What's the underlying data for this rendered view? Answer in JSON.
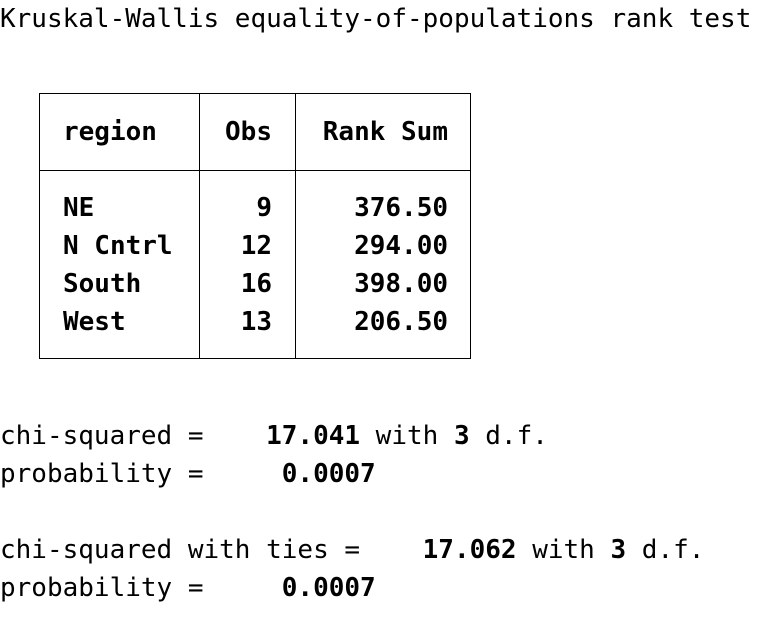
{
  "title": "Kruskal-Wallis equality-of-populations rank test",
  "table": {
    "headers": {
      "region": "region",
      "obs": "Obs",
      "rank_sum": "Rank Sum"
    },
    "rows": [
      {
        "region": "NE",
        "obs": "9",
        "rank_sum": "376.50"
      },
      {
        "region": "N Cntrl",
        "obs": "12",
        "rank_sum": "294.00"
      },
      {
        "region": "South",
        "obs": "16",
        "rank_sum": "398.00"
      },
      {
        "region": "West",
        "obs": "13",
        "rank_sum": "206.50"
      }
    ]
  },
  "stats": {
    "chi_label": "chi-squared =    ",
    "chi_value": "17.041",
    "chi_with": " with ",
    "chi_df": "3",
    "chi_df_suffix": " d.f.",
    "prob_label": "probability =     ",
    "prob_value": "0.0007",
    "ties_label": "chi-squared with ties =    ",
    "ties_value": "17.062",
    "ties_with": " with ",
    "ties_df": "3",
    "ties_df_suffix": " d.f.",
    "ties_prob_label": "probability =     ",
    "ties_prob_value": "0.0007"
  }
}
